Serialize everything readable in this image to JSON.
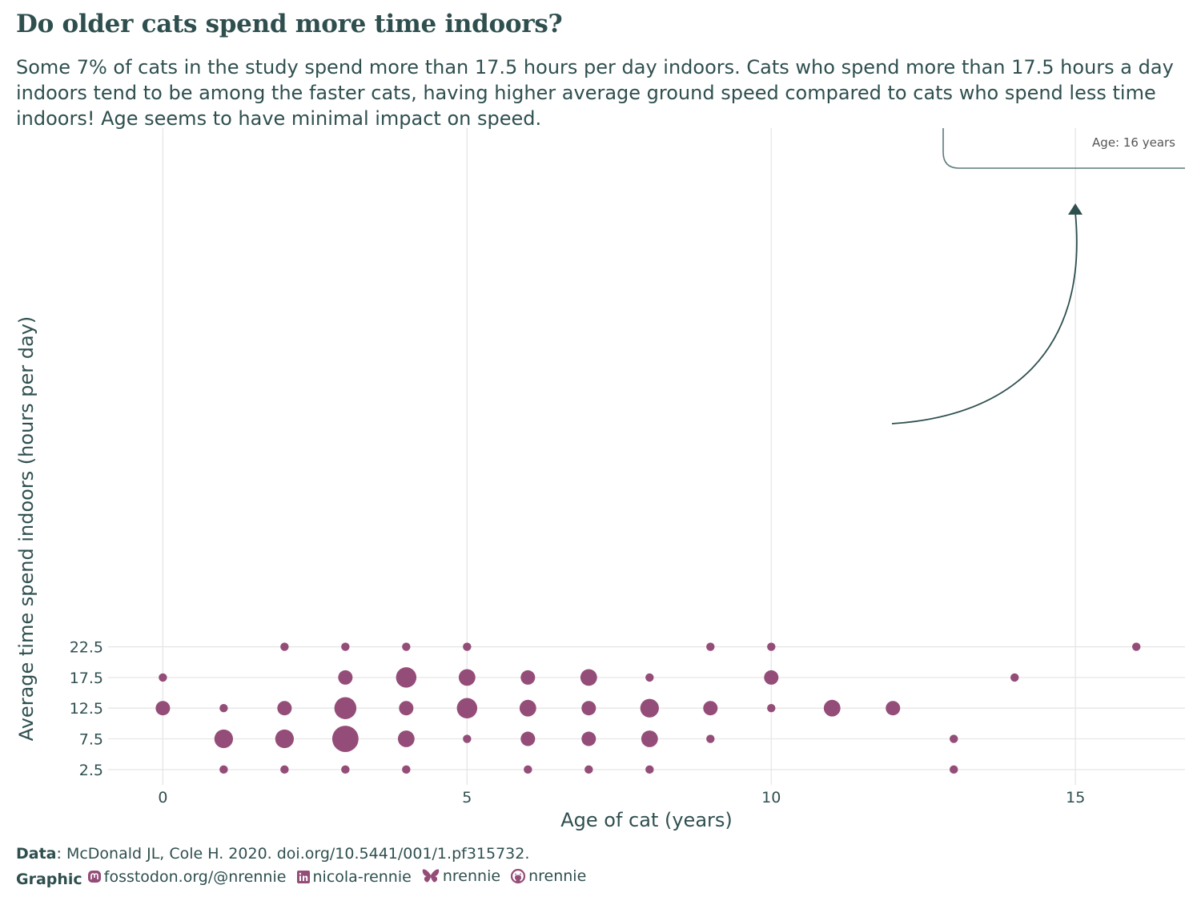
{
  "title": "Do older cats spend more time indoors?",
  "subtitle": "Some 7% of cats in the study spend more than 17.5 hours per day indoors. Cats who spend more than 17.5 hours a day indoors tend to be among the faster cats, having higher average ground speed compared to cats who spend less time indoors! Age seems to have minimal impact on speed.",
  "annotation": "Age: 16 years",
  "caption": {
    "data_label": "Data",
    "data_text": ": McDonald JL, Cole H. 2020. doi.org/10.5441/001/1.pf315732.",
    "graphic_label": "Graphic",
    "mastodon": "fosstodon.org/@nrennie",
    "linkedin": "nicola-rennie",
    "bluesky": "nrennie",
    "github": "nrennie"
  },
  "colors": {
    "point": "#944d78",
    "text": "#2f4f4f",
    "grid": "#e6e6e6"
  },
  "icons": [
    "mastodon-icon",
    "linkedin-icon",
    "bluesky-icon",
    "github-icon"
  ],
  "chart_data": {
    "type": "scatter",
    "xlabel": "Age of cat (years)",
    "ylabel": "Average time spend indoors (hours per day)",
    "xlim": [
      -0.9,
      16.8
    ],
    "ylim": [
      0,
      107
    ],
    "x_ticks": [
      0,
      5,
      10,
      15
    ],
    "y_ticks": [
      2.5,
      7.5,
      12.5,
      17.5,
      22.5
    ],
    "grid": true,
    "points": [
      {
        "x": 0,
        "y": 17.5,
        "n": 1
      },
      {
        "x": 0,
        "y": 12.5,
        "n": 3
      },
      {
        "x": 1,
        "y": 12.5,
        "n": 1
      },
      {
        "x": 1,
        "y": 7.5,
        "n": 5
      },
      {
        "x": 1,
        "y": 2.5,
        "n": 1
      },
      {
        "x": 2,
        "y": 22.5,
        "n": 1
      },
      {
        "x": 2,
        "y": 12.5,
        "n": 3
      },
      {
        "x": 2,
        "y": 7.5,
        "n": 5
      },
      {
        "x": 2,
        "y": 2.5,
        "n": 1
      },
      {
        "x": 3,
        "y": 22.5,
        "n": 1
      },
      {
        "x": 3,
        "y": 17.5,
        "n": 3
      },
      {
        "x": 3,
        "y": 12.5,
        "n": 7
      },
      {
        "x": 3,
        "y": 7.5,
        "n": 10
      },
      {
        "x": 3,
        "y": 2.5,
        "n": 1
      },
      {
        "x": 4,
        "y": 22.5,
        "n": 1
      },
      {
        "x": 4,
        "y": 17.5,
        "n": 6
      },
      {
        "x": 4,
        "y": 12.5,
        "n": 3
      },
      {
        "x": 4,
        "y": 7.5,
        "n": 4
      },
      {
        "x": 4,
        "y": 2.5,
        "n": 1
      },
      {
        "x": 5,
        "y": 22.5,
        "n": 1
      },
      {
        "x": 5,
        "y": 17.5,
        "n": 4
      },
      {
        "x": 5,
        "y": 12.5,
        "n": 6
      },
      {
        "x": 5,
        "y": 7.5,
        "n": 1
      },
      {
        "x": 6,
        "y": 17.5,
        "n": 3
      },
      {
        "x": 6,
        "y": 12.5,
        "n": 4
      },
      {
        "x": 6,
        "y": 7.5,
        "n": 3
      },
      {
        "x": 6,
        "y": 2.5,
        "n": 1
      },
      {
        "x": 7,
        "y": 17.5,
        "n": 4
      },
      {
        "x": 7,
        "y": 12.5,
        "n": 3
      },
      {
        "x": 7,
        "y": 7.5,
        "n": 3
      },
      {
        "x": 7,
        "y": 2.5,
        "n": 1
      },
      {
        "x": 8,
        "y": 17.5,
        "n": 1
      },
      {
        "x": 8,
        "y": 12.5,
        "n": 5
      },
      {
        "x": 8,
        "y": 7.5,
        "n": 4
      },
      {
        "x": 8,
        "y": 2.5,
        "n": 1
      },
      {
        "x": 9,
        "y": 22.5,
        "n": 1
      },
      {
        "x": 9,
        "y": 12.5,
        "n": 3
      },
      {
        "x": 9,
        "y": 7.5,
        "n": 1
      },
      {
        "x": 10,
        "y": 22.5,
        "n": 1
      },
      {
        "x": 10,
        "y": 17.5,
        "n": 3
      },
      {
        "x": 10,
        "y": 12.5,
        "n": 1
      },
      {
        "x": 11,
        "y": 12.5,
        "n": 4
      },
      {
        "x": 12,
        "y": 12.5,
        "n": 3
      },
      {
        "x": 13,
        "y": 7.5,
        "n": 1
      },
      {
        "x": 13,
        "y": 2.5,
        "n": 1
      },
      {
        "x": 14,
        "y": 17.5,
        "n": 1
      },
      {
        "x": 16,
        "y": 22.5,
        "n": 1
      }
    ]
  }
}
